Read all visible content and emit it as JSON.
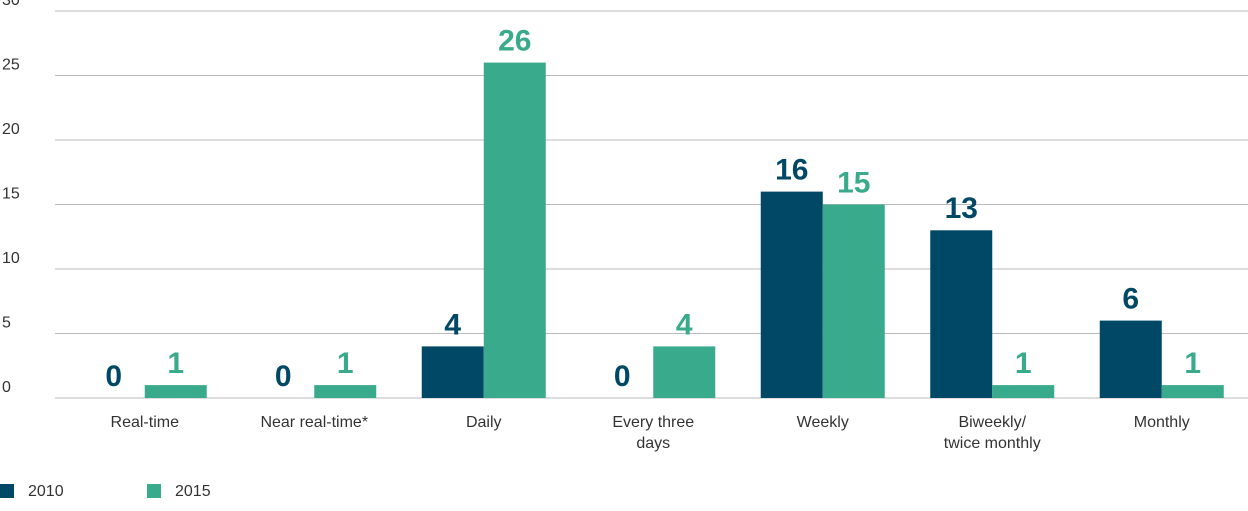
{
  "chart_data": {
    "type": "bar",
    "categories": [
      "Real-time",
      "Near real-time*",
      "Daily",
      "Every three\ndays",
      "Weekly",
      "Biweekly/\ntwice monthly",
      "Monthly"
    ],
    "series": [
      {
        "name": "2010",
        "color": "#004866",
        "values": [
          0,
          0,
          4,
          0,
          16,
          13,
          6
        ]
      },
      {
        "name": "2015",
        "color": "#3aaa8c",
        "values": [
          1,
          1,
          26,
          4,
          15,
          1,
          1
        ]
      }
    ],
    "ylim": [
      0,
      30
    ],
    "yticks": [
      0,
      5,
      10,
      15,
      20,
      25,
      30
    ],
    "grid": true,
    "legend": "bottom-left"
  }
}
